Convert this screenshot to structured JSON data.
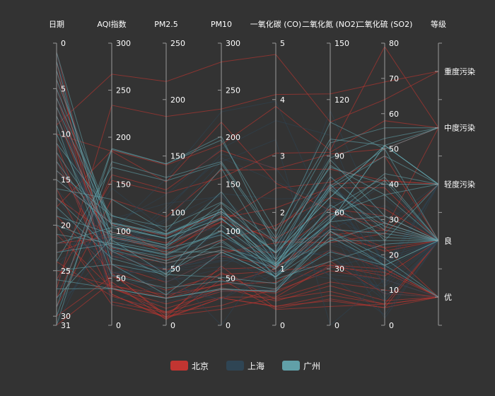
{
  "chart_data": {
    "type": "parallel",
    "axes": [
      {
        "name": "日期",
        "type": "value",
        "range": [
          0,
          31
        ],
        "inverse": true,
        "ticks": [
          0,
          5,
          10,
          15,
          20,
          25,
          30,
          31
        ]
      },
      {
        "name": "AQI指数",
        "type": "value",
        "range": [
          0,
          300
        ],
        "ticks": [
          0,
          50,
          100,
          150,
          200,
          250,
          300
        ]
      },
      {
        "name": "PM2.5",
        "type": "value",
        "range": [
          0,
          250
        ],
        "ticks": [
          0,
          50,
          100,
          150,
          200,
          250
        ]
      },
      {
        "name": "PM10",
        "type": "value",
        "range": [
          0,
          300
        ],
        "ticks": [
          0,
          50,
          100,
          150,
          200,
          250,
          300
        ]
      },
      {
        "name": "一氧化碳 (CO)",
        "type": "value",
        "range": [
          0,
          5
        ],
        "ticks": [
          0,
          1,
          2,
          3,
          4,
          5
        ]
      },
      {
        "name": "二氧化氮 (NO2)",
        "type": "value",
        "range": [
          0,
          150
        ],
        "ticks": [
          0,
          30,
          60,
          90,
          120,
          150
        ]
      },
      {
        "name": "二氧化硫 (SO2)",
        "type": "value",
        "range": [
          0,
          80
        ],
        "ticks": [
          0,
          10,
          20,
          30,
          40,
          50,
          60,
          70,
          80
        ]
      },
      {
        "name": "等级",
        "type": "category",
        "categories": [
          "优",
          "良",
          "轻度污染",
          "中度污染",
          "重度污染"
        ]
      }
    ],
    "series": [
      {
        "name": "北京",
        "color": "#c23531",
        "data": [
          [
            1,
            55,
            9,
            56,
            0.46,
            18,
            6,
            "良"
          ],
          [
            2,
            25,
            11,
            21,
            0.65,
            34,
            9,
            "优"
          ],
          [
            3,
            56,
            7,
            63,
            0.3,
            14,
            5,
            "良"
          ],
          [
            4,
            33,
            7,
            29,
            0.33,
            16,
            6,
            "优"
          ],
          [
            5,
            42,
            24,
            44,
            0.76,
            40,
            16,
            "优"
          ],
          [
            6,
            82,
            58,
            90,
            1.77,
            68,
            33,
            "良"
          ],
          [
            7,
            74,
            49,
            77,
            1.46,
            48,
            27,
            "良"
          ],
          [
            8,
            78,
            55,
            80,
            1.29,
            59,
            29,
            "良"
          ],
          [
            9,
            267,
            216,
            280,
            4.8,
            108,
            64,
            "重度污染"
          ],
          [
            10,
            185,
            127,
            216,
            2.52,
            61,
            27,
            "中度污染"
          ],
          [
            11,
            39,
            19,
            38,
            0.57,
            31,
            15,
            "优"
          ],
          [
            12,
            41,
            11,
            40,
            0.43,
            21,
            7,
            "优"
          ],
          [
            13,
            64,
            38,
            74,
            1.04,
            46,
            22,
            "良"
          ],
          [
            14,
            108,
            79,
            120,
            1.7,
            75,
            41,
            "轻度污染"
          ],
          [
            15,
            108,
            63,
            116,
            1.48,
            44,
            26,
            "轻度污染"
          ],
          [
            16,
            33,
            6,
            29,
            0.34,
            13,
            5,
            "优"
          ],
          [
            17,
            94,
            66,
            110,
            1.54,
            62,
            31,
            "良"
          ],
          [
            18,
            186,
            142,
            192,
            3.88,
            93,
            79,
            "中度污染"
          ],
          [
            19,
            57,
            31,
            54,
            0.96,
            32,
            14,
            "良"
          ],
          [
            20,
            22,
            8,
            17,
            0.48,
            23,
            10,
            "优"
          ],
          [
            21,
            39,
            15,
            36,
            0.61,
            29,
            13,
            "优"
          ],
          [
            22,
            94,
            69,
            114,
            2.08,
            73,
            39,
            "良"
          ],
          [
            23,
            99,
            73,
            110,
            2.43,
            76,
            48,
            "良"
          ],
          [
            24,
            31,
            12,
            30,
            0.5,
            32,
            16,
            "优"
          ],
          [
            25,
            42,
            27,
            43,
            1,
            53,
            22,
            "优"
          ],
          [
            26,
            154,
            117,
            157,
            3.05,
            92,
            58,
            "中度污染"
          ],
          [
            27,
            234,
            185,
            230,
            4.09,
            123,
            69,
            "重度污染"
          ],
          [
            28,
            160,
            120,
            186,
            2.77,
            91,
            50,
            "中度污染"
          ],
          [
            29,
            134,
            96,
            165,
            2.76,
            83,
            41,
            "轻度污染"
          ],
          [
            30,
            52,
            24,
            60,
            1.03,
            50,
            21,
            "良"
          ],
          [
            31,
            46,
            5,
            49,
            0.28,
            10,
            6,
            "优"
          ]
        ]
      },
      {
        "name": "上海",
        "color": "#2f4554",
        "data": [
          [
            1,
            26,
            37,
            27,
            1.163,
            27,
            13,
            "优"
          ],
          [
            2,
            85,
            62,
            71,
            1.195,
            60,
            8,
            "良"
          ],
          [
            3,
            78,
            38,
            74,
            1.363,
            37,
            7,
            "良"
          ],
          [
            4,
            21,
            21,
            36,
            0.634,
            40,
            9,
            "优"
          ],
          [
            5,
            41,
            42,
            46,
            0.915,
            81,
            13,
            "优"
          ],
          [
            6,
            56,
            52,
            69,
            1.067,
            92,
            16,
            "良"
          ],
          [
            7,
            64,
            30,
            28,
            0.924,
            51,
            2,
            "良"
          ],
          [
            8,
            55,
            48,
            74,
            1.236,
            75,
            26,
            "良"
          ],
          [
            9,
            76,
            85,
            113,
            1.237,
            114,
            27,
            "良"
          ],
          [
            10,
            91,
            81,
            104,
            1.041,
            56,
            40,
            "良"
          ],
          [
            11,
            84,
            39,
            60,
            0.964,
            25,
            11,
            "良"
          ],
          [
            12,
            64,
            51,
            101,
            0.862,
            58,
            23,
            "良"
          ],
          [
            13,
            70,
            69,
            120,
            1.198,
            65,
            36,
            "良"
          ],
          [
            14,
            77,
            105,
            178,
            2.549,
            64,
            16,
            "良"
          ],
          [
            15,
            109,
            68,
            87,
            0.996,
            74,
            29,
            "轻度污染"
          ],
          [
            16,
            73,
            68,
            97,
            0.905,
            51,
            34,
            "良"
          ],
          [
            17,
            54,
            27,
            47,
            0.592,
            53,
            12,
            "良"
          ],
          [
            18,
            51,
            61,
            97,
            0.811,
            65,
            19,
            "良"
          ],
          [
            19,
            91,
            71,
            121,
            1.374,
            43,
            18,
            "良"
          ],
          [
            20,
            73,
            102,
            182,
            2.787,
            44,
            19,
            "良"
          ],
          [
            21,
            73,
            50,
            76,
            0.717,
            31,
            20,
            "良"
          ],
          [
            22,
            84,
            94,
            140,
            2.238,
            68,
            18,
            "良"
          ],
          [
            23,
            93,
            77,
            104,
            1.165,
            53,
            7,
            "良"
          ],
          [
            24,
            99,
            130,
            227,
            3.97,
            55,
            15,
            "良"
          ],
          [
            25,
            146,
            84,
            139,
            1.094,
            40,
            17,
            "轻度污染"
          ],
          [
            26,
            113,
            108,
            137,
            1.481,
            48,
            15,
            "轻度污染"
          ],
          [
            27,
            81,
            48,
            62,
            1.619,
            26,
            3,
            "良"
          ],
          [
            28,
            56,
            48,
            68,
            1.336,
            37,
            9,
            "良"
          ],
          [
            29,
            82,
            92,
            174,
            3.29,
            0,
            13,
            "良"
          ],
          [
            30,
            106,
            116,
            188,
            3.628,
            101,
            16,
            "轻度污染"
          ],
          [
            31,
            118,
            50,
            0,
            1.383,
            76,
            11,
            "轻度污染"
          ]
        ]
      },
      {
        "name": "广州",
        "color": "#61a0a8",
        "data": [
          [
            1,
            91,
            45,
            125,
            0.82,
            34,
            23,
            "良"
          ],
          [
            2,
            65,
            27,
            78,
            0.86,
            45,
            29,
            "良"
          ],
          [
            3,
            83,
            60,
            84,
            1.09,
            73,
            27,
            "良"
          ],
          [
            4,
            109,
            81,
            121,
            1.28,
            68,
            51,
            "轻度污染"
          ],
          [
            5,
            106,
            77,
            114,
            1.07,
            55,
            51,
            "轻度污染"
          ],
          [
            6,
            109,
            81,
            121,
            1.28,
            68,
            51,
            "轻度污染"
          ],
          [
            7,
            106,
            77,
            114,
            1.07,
            55,
            51,
            "轻度污染"
          ],
          [
            8,
            89,
            65,
            78,
            0.86,
            51,
            26,
            "良"
          ],
          [
            9,
            53,
            33,
            47,
            0.64,
            50,
            17,
            "良"
          ],
          [
            10,
            80,
            55,
            80,
            1.01,
            75,
            24,
            "良"
          ],
          [
            11,
            117,
            81,
            124,
            1.03,
            45,
            24,
            "轻度污染"
          ],
          [
            12,
            99,
            71,
            142,
            1.1,
            62,
            42,
            "良"
          ],
          [
            13,
            95,
            69,
            130,
            1.28,
            74,
            50,
            "良"
          ],
          [
            14,
            116,
            87,
            131,
            1.47,
            84,
            40,
            "轻度污染"
          ],
          [
            15,
            108,
            80,
            121,
            1.3,
            85,
            37,
            "轻度污染"
          ],
          [
            16,
            134,
            83,
            167,
            1.16,
            57,
            43,
            "轻度污染"
          ],
          [
            17,
            79,
            43,
            107,
            1.05,
            59,
            37,
            "良"
          ],
          [
            18,
            71,
            46,
            89,
            0.86,
            64,
            25,
            "良"
          ],
          [
            19,
            97,
            71,
            113,
            1.17,
            88,
            31,
            "良"
          ],
          [
            20,
            84,
            57,
            91,
            0.85,
            55,
            31,
            "良"
          ],
          [
            21,
            87,
            63,
            101,
            0.9,
            56,
            41,
            "良"
          ],
          [
            22,
            104,
            77,
            119,
            1.09,
            73,
            48,
            "轻度污染"
          ],
          [
            23,
            87,
            62,
            100,
            1,
            72,
            28,
            "良"
          ],
          [
            24,
            168,
            128,
            172,
            1.49,
            97,
            56,
            "中度污染"
          ],
          [
            25,
            65,
            45,
            51,
            0.74,
            39,
            17,
            "良"
          ],
          [
            26,
            39,
            24,
            38,
            0.61,
            47,
            17,
            "优"
          ],
          [
            27,
            39,
            24,
            39,
            0.59,
            50,
            19,
            "优"
          ],
          [
            28,
            93,
            68,
            96,
            1.05,
            79,
            29,
            "良"
          ],
          [
            29,
            188,
            143,
            197,
            1.66,
            99,
            51,
            "中度污染"
          ],
          [
            30,
            174,
            131,
            174,
            1.55,
            108,
            50,
            "中度污染"
          ],
          [
            31,
            187,
            143,
            201,
            1.39,
            89,
            53,
            "中度污染"
          ]
        ]
      }
    ],
    "legend": {
      "position": "bottom-center",
      "items": [
        "北京",
        "上海",
        "广州"
      ]
    },
    "background": "#333333",
    "axis_color": "#999999",
    "label_color": "#ffffff"
  }
}
